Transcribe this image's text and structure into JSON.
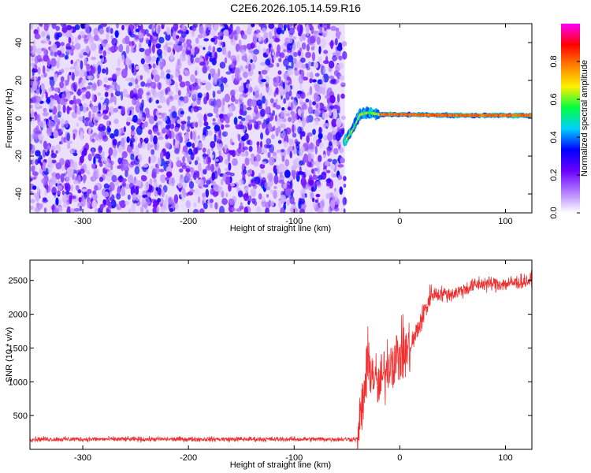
{
  "title": "C2E6.2026.105.14.59.R16",
  "chart_data": [
    {
      "type": "heatmap",
      "xlabel": "Height of straight line (km)",
      "ylabel": "Frequency (Hz)",
      "xlim": [
        -350,
        125
      ],
      "ylim": [
        -50,
        50
      ],
      "x_ticks": [
        -300,
        -200,
        -100,
        0,
        100
      ],
      "y_ticks": [
        -40,
        -20,
        0,
        20,
        40
      ],
      "colorbar": {
        "label": "Normalized spectral amplitude",
        "range": [
          0,
          1
        ],
        "ticks": [
          "0.0",
          "0.2",
          "0.4",
          "0.6",
          "0.8"
        ],
        "colors": [
          "#ffffff",
          "#b07cff",
          "#6a00ff",
          "#0000ff",
          "#00d0ff",
          "#00ff40",
          "#fff000",
          "#ff8000",
          "#ff0000",
          "#ff00ff"
        ]
      },
      "noise_region": {
        "x_range": [
          -350,
          -52
        ],
        "y_range": [
          -50,
          50
        ]
      },
      "signal_ridge": [
        {
          "x": -52,
          "f": -12
        },
        {
          "x": -45,
          "f": -6
        },
        {
          "x": -38,
          "f": 2
        },
        {
          "x": -30,
          "f": 3
        },
        {
          "x": -20,
          "f": 2
        },
        {
          "x": 0,
          "f": 2
        },
        {
          "x": 50,
          "f": 1.5
        },
        {
          "x": 100,
          "f": 1.5
        },
        {
          "x": 125,
          "f": 1.5
        }
      ]
    },
    {
      "type": "line",
      "xlabel": "Height of straight line (km)",
      "ylabel": "SNR (10 * v/v)",
      "xlim": [
        -350,
        125
      ],
      "ylim": [
        0,
        2800
      ],
      "x_ticks": [
        -300,
        -200,
        -100,
        0,
        100
      ],
      "y_ticks": [
        500,
        1000,
        1500,
        2000,
        2500
      ],
      "color": "#f03030",
      "series_profile": [
        {
          "x": -350,
          "y": 150
        },
        {
          "x": -40,
          "y": 150
        },
        {
          "x": -35,
          "y": 700
        },
        {
          "x": -30,
          "y": 1300
        },
        {
          "x": -20,
          "y": 900
        },
        {
          "x": -10,
          "y": 1300
        },
        {
          "x": 10,
          "y": 1500
        },
        {
          "x": 20,
          "y": 1900
        },
        {
          "x": 30,
          "y": 2300
        },
        {
          "x": 50,
          "y": 2300
        },
        {
          "x": 75,
          "y": 2450
        },
        {
          "x": 100,
          "y": 2450
        },
        {
          "x": 125,
          "y": 2500
        }
      ]
    }
  ]
}
